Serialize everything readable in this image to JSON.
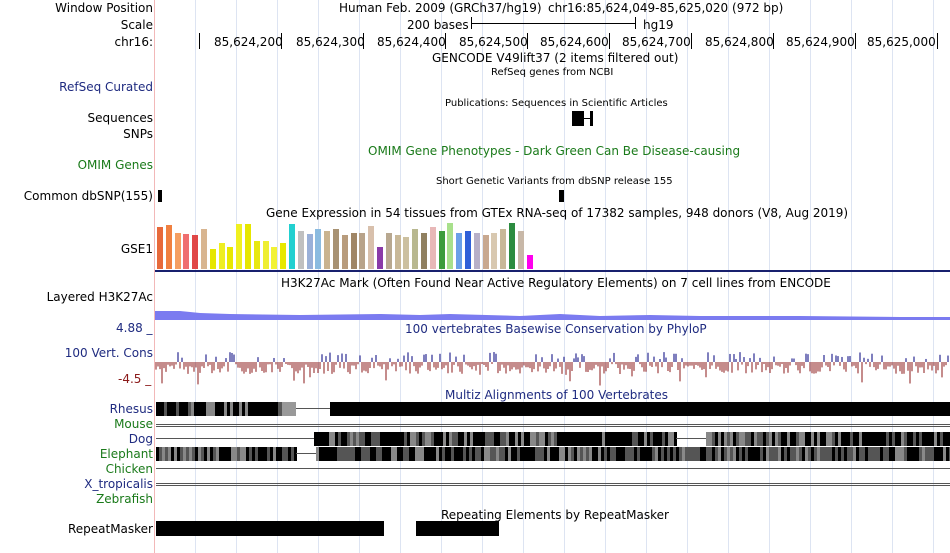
{
  "header": {
    "window_label": "Window Position",
    "scale_label": "Scale",
    "chr_label": "chr16:",
    "assembly": "Human Feb. 2009 (GRCh37/hg19)",
    "position": "chr16:85,624,049-85,625,020 (972 bp)",
    "scale_text": "200 bases",
    "scale_db": "hg19",
    "ticks": [
      "85,624,200",
      "85,624,300",
      "85,624,400",
      "85,624,500",
      "85,624,600",
      "85,624,700",
      "85,624,800",
      "85,624,900",
      "85,625,000"
    ]
  },
  "tracks": {
    "gencode_title": "GENCODE V49lift37 (2 items filtered out)",
    "refseq_label": "RefSeq Curated",
    "refseq_title": "RefSeq genes from NCBI",
    "pubs_title": "Publications: Sequences in Scientific Articles",
    "sequences_label": "Sequences",
    "snps_label": "SNPs",
    "omim_label": "OMIM Genes",
    "omim_title": "OMIM Gene Phenotypes - Dark Green Can Be Disease-causing",
    "dbsnp_title": "Short Genetic Variants from dbSNP release 155",
    "dbsnp_label": "Common dbSNP(155)",
    "gtex_title": "Gene Expression in 54 tissues from GTEx RNA-seq of 17382 samples, 948 donors (V8, Aug 2019)",
    "gtex_label": "GSE1",
    "h3k_label": "Layered H3K27Ac",
    "h3k_title": "H3K27Ac Mark (Often Found Near Active Regulatory Elements) on 7 cell lines from ENCODE",
    "cons_max": "4.88 _",
    "cons_label": "100 Vert. Cons",
    "cons_min": "-4.5 _",
    "cons_title": "100 vertebrates Basewise Conservation by PhyloP",
    "multiz_title": "Multiz Alignments of 100 Vertebrates",
    "species": [
      "Rhesus",
      "Mouse",
      "Dog",
      "Elephant",
      "Chicken",
      "X_tropicalis",
      "Zebrafish"
    ],
    "rmsk_title": "Repeating Elements by RepeatMasker",
    "rmsk_label": "RepeatMasker"
  },
  "gtex_bars": [
    {
      "v": 42,
      "c": "#e7693a"
    },
    {
      "v": 44,
      "c": "#f08040"
    },
    {
      "v": 36,
      "c": "#f59f62"
    },
    {
      "v": 35,
      "c": "#ef6f6f"
    },
    {
      "v": 34,
      "c": "#e04747"
    },
    {
      "v": 40,
      "c": "#d8b590"
    },
    {
      "v": 20,
      "c": "#e6e600"
    },
    {
      "v": 26,
      "c": "#eeee22"
    },
    {
      "v": 22,
      "c": "#e8e800"
    },
    {
      "v": 45,
      "c": "#f0f020"
    },
    {
      "v": 45,
      "c": "#e6e600"
    },
    {
      "v": 28,
      "c": "#e8e810"
    },
    {
      "v": 28,
      "c": "#eeee33"
    },
    {
      "v": 22,
      "c": "#f2f236"
    },
    {
      "v": 26,
      "c": "#e8e800"
    },
    {
      "v": 45,
      "c": "#22d0d0"
    },
    {
      "v": 38,
      "c": "#c0c0c0"
    },
    {
      "v": 35,
      "c": "#9ab0d8"
    },
    {
      "v": 40,
      "c": "#8bbbe0"
    },
    {
      "v": 38,
      "c": "#c9b38f"
    },
    {
      "v": 40,
      "c": "#a89273"
    },
    {
      "v": 34,
      "c": "#b89c7d"
    },
    {
      "v": 36,
      "c": "#a08666"
    },
    {
      "v": 36,
      "c": "#b8a38a"
    },
    {
      "v": 43,
      "c": "#d8c0ac"
    },
    {
      "v": 22,
      "c": "#8a3aa8"
    },
    {
      "v": 36,
      "c": "#b8a890"
    },
    {
      "v": 34,
      "c": "#c8b898"
    },
    {
      "v": 32,
      "c": "#ccc0a0"
    },
    {
      "v": 40,
      "c": "#b8b890"
    },
    {
      "v": 36,
      "c": "#908060"
    },
    {
      "v": 42,
      "c": "#e8b8b8"
    },
    {
      "v": 38,
      "c": "#3c9c3c"
    },
    {
      "v": 46,
      "c": "#a8e08c"
    },
    {
      "v": 36,
      "c": "#6aa0e8"
    },
    {
      "v": 38,
      "c": "#3060d8"
    },
    {
      "v": 36,
      "c": "#b8b0c8"
    },
    {
      "v": 34,
      "c": "#c8a890"
    },
    {
      "v": 36,
      "c": "#d8c8b0"
    },
    {
      "v": 40,
      "c": "#c8b898"
    },
    {
      "v": 46,
      "c": "#2c8c40"
    },
    {
      "v": 38,
      "c": "#c8b8a8"
    },
    {
      "v": 14,
      "c": "#ff00ee"
    }
  ],
  "colors": {
    "label_blue": "#1f2b80",
    "label_green": "#1a7a1a",
    "cons_red": "#8b1a1a",
    "h3k": "#7b7bf0",
    "gtex_line": "#18206e"
  }
}
